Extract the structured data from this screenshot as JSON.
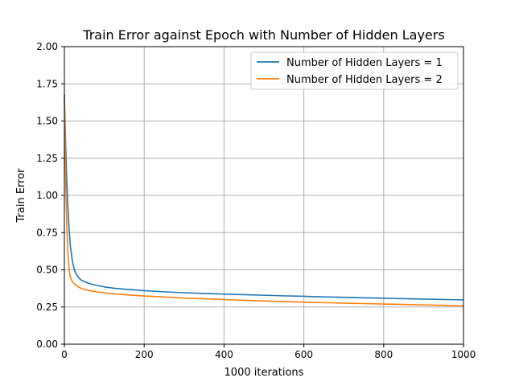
{
  "chart_data": {
    "type": "line",
    "title": "Train Error against Epoch with Number of Hidden Layers",
    "xlabel": "1000 iterations",
    "ylabel": "Train Error",
    "xlim": [
      0,
      1000
    ],
    "ylim": [
      0,
      2.0
    ],
    "xticks": [
      0,
      200,
      400,
      600,
      800,
      1000
    ],
    "yticks": [
      0.0,
      0.25,
      0.5,
      0.75,
      1.0,
      1.25,
      1.5,
      1.75,
      2.0
    ],
    "xtick_labels": [
      "0",
      "200",
      "400",
      "600",
      "800",
      "1000"
    ],
    "ytick_labels": [
      "0.00",
      "0.25",
      "0.50",
      "0.75",
      "1.00",
      "1.25",
      "1.50",
      "1.75",
      "2.00"
    ],
    "grid": true,
    "legend_position": "top-right",
    "series": [
      {
        "name": "Number of Hidden Layers = 1",
        "color": "#1f77b4",
        "x": [
          0,
          2,
          5,
          8,
          10,
          12,
          15,
          20,
          25,
          30,
          35,
          40,
          50,
          60,
          70,
          80,
          100,
          125,
          150,
          175,
          200,
          250,
          300,
          350,
          400,
          450,
          500,
          550,
          600,
          650,
          700,
          750,
          800,
          850,
          900,
          950,
          1000
        ],
        "y": [
          1.68,
          1.45,
          1.18,
          0.97,
          0.86,
          0.77,
          0.66,
          0.56,
          0.5,
          0.47,
          0.45,
          0.435,
          0.42,
          0.41,
          0.402,
          0.396,
          0.385,
          0.376,
          0.37,
          0.365,
          0.36,
          0.352,
          0.346,
          0.341,
          0.337,
          0.333,
          0.329,
          0.325,
          0.322,
          0.318,
          0.315,
          0.312,
          0.309,
          0.306,
          0.303,
          0.3,
          0.298
        ]
      },
      {
        "name": "Number of Hidden Layers = 2",
        "color": "#ff7f0e",
        "x": [
          0,
          2,
          4,
          6,
          8,
          10,
          12,
          15,
          20,
          25,
          30,
          35,
          40,
          50,
          60,
          70,
          80,
          100,
          125,
          150,
          175,
          200,
          250,
          300,
          350,
          400,
          450,
          500,
          550,
          600,
          650,
          700,
          750,
          800,
          850,
          900,
          950,
          1000
        ],
        "y": [
          1.65,
          1.3,
          1.0,
          0.8,
          0.66,
          0.57,
          0.5,
          0.45,
          0.42,
          0.405,
          0.395,
          0.385,
          0.378,
          0.368,
          0.362,
          0.357,
          0.352,
          0.345,
          0.338,
          0.333,
          0.328,
          0.324,
          0.317,
          0.31,
          0.305,
          0.3,
          0.295,
          0.29,
          0.286,
          0.282,
          0.279,
          0.276,
          0.273,
          0.27,
          0.267,
          0.264,
          0.261,
          0.258
        ]
      }
    ]
  }
}
